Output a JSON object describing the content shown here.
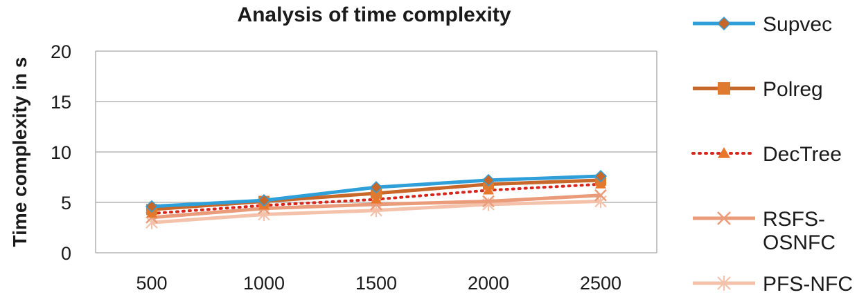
{
  "chart_data": {
    "type": "line",
    "title": "Analysis of time complexity",
    "xlabel": "",
    "ylabel": "Time complexity in s",
    "categories": [
      "500",
      "1000",
      "1500",
      "2000",
      "2500"
    ],
    "ylim": [
      0,
      20
    ],
    "yticks": [
      "0",
      "5",
      "10",
      "15",
      "20"
    ],
    "grid": true,
    "legend_position": "right",
    "series": [
      {
        "name": "Supvec",
        "values": [
          4.6,
          5.2,
          6.5,
          7.2,
          7.6
        ],
        "color": "#2e9fd8",
        "line_style": "solid",
        "marker": "diamond",
        "marker_color": "#c8672a"
      },
      {
        "name": "Polreg",
        "values": [
          4.3,
          5.1,
          5.9,
          6.8,
          7.2
        ],
        "color": "#c8672a",
        "line_style": "solid",
        "marker": "square",
        "marker_color": "#e07a2e"
      },
      {
        "name": "DecTree",
        "values": [
          3.9,
          4.7,
          5.3,
          6.2,
          6.8
        ],
        "color": "#d9261c",
        "line_style": "dotted",
        "marker": "triangle",
        "marker_color": "#e8772a"
      },
      {
        "name": "RSFS-OSNFC",
        "legend_lines": [
          "RSFS-",
          "OSNFC"
        ],
        "values": [
          3.5,
          4.4,
          4.8,
          5.1,
          5.7
        ],
        "color": "#ea9c7a",
        "line_style": "solid",
        "marker": "x",
        "marker_color": "#ea9c7a"
      },
      {
        "name": "PFS-NFC",
        "values": [
          3.0,
          3.8,
          4.2,
          4.8,
          5.1
        ],
        "color": "#f4c2aa",
        "line_style": "solid",
        "marker": "asterisk",
        "marker_color": "#f4c2aa"
      }
    ]
  }
}
